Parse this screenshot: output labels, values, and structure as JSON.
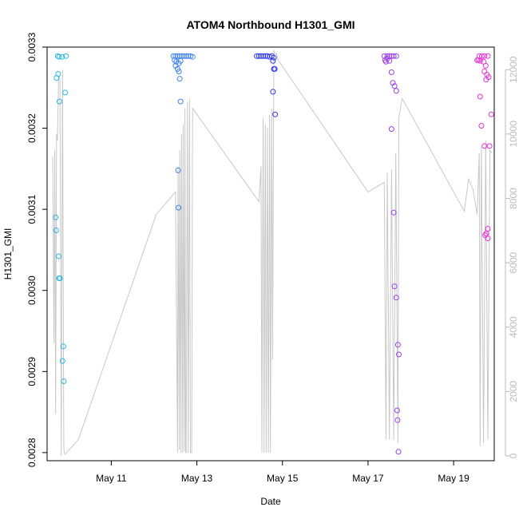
{
  "chart_data": {
    "type": "scatter",
    "title": "ATOM4 Northbound H1301_GMI",
    "xlabel": "Date",
    "ylabel": "H1301_GMI",
    "grid": false,
    "x_ticks": [
      {
        "value": 11,
        "label": "May 11"
      },
      {
        "value": 13,
        "label": "May 13"
      },
      {
        "value": 15,
        "label": "May 15"
      },
      {
        "value": 17,
        "label": "May 17"
      },
      {
        "value": 19,
        "label": "May 19"
      }
    ],
    "xlim": [
      9.5,
      19.95
    ],
    "ylim": [
      0.00279,
      0.0033
    ],
    "y_ticks": [
      {
        "value": 0.0028,
        "label": "0.0028"
      },
      {
        "value": 0.0029,
        "label": "0.0029"
      },
      {
        "value": 0.003,
        "label": "0.0030"
      },
      {
        "value": 0.0031,
        "label": "0.0031"
      },
      {
        "value": 0.0032,
        "label": "0.0032"
      },
      {
        "value": 0.0033,
        "label": "0.0033"
      }
    ],
    "y2lim": [
      -150,
      12700
    ],
    "y2_ticks": [
      {
        "value": 0,
        "label": "0"
      },
      {
        "value": 2000,
        "label": "2000"
      },
      {
        "value": 4000,
        "label": "4000"
      },
      {
        "value": 6000,
        "label": "6000"
      },
      {
        "value": 8000,
        "label": "8000"
      },
      {
        "value": 10000,
        "label": "10000"
      },
      {
        "value": 12000,
        "label": "12000"
      }
    ],
    "colors": {
      "altitude_line": "#c8c8c8",
      "secondary_axis": "#bbbbbb"
    },
    "series": [
      {
        "color": "#29b6e8",
        "points": [
          [
            9.75,
            0.003289
          ],
          [
            9.85,
            0.003288
          ],
          [
            9.94,
            0.003289
          ],
          [
            9.78,
            0.003288
          ],
          [
            9.72,
            0.003262
          ],
          [
            9.76,
            0.003267
          ],
          [
            9.92,
            0.003244
          ],
          [
            9.79,
            0.003233
          ],
          [
            9.7,
            0.00309
          ],
          [
            9.71,
            0.003074
          ],
          [
            9.77,
            0.003042
          ],
          [
            9.78,
            0.003015
          ],
          [
            9.8,
            0.003015
          ],
          [
            9.88,
            0.002931
          ],
          [
            9.86,
            0.002913
          ],
          [
            9.89,
            0.002888
          ]
        ]
      },
      {
        "color": "#3f82ee",
        "points": [
          [
            12.45,
            0.003289
          ],
          [
            12.5,
            0.003289
          ],
          [
            12.55,
            0.003289
          ],
          [
            12.6,
            0.003289
          ],
          [
            12.65,
            0.003289
          ],
          [
            12.7,
            0.003289
          ],
          [
            12.75,
            0.003289
          ],
          [
            12.8,
            0.003289
          ],
          [
            12.85,
            0.003289
          ],
          [
            12.9,
            0.003288
          ],
          [
            12.48,
            0.003284
          ],
          [
            12.52,
            0.003282
          ],
          [
            12.58,
            0.00328
          ],
          [
            12.62,
            0.003283
          ],
          [
            12.5,
            0.003277
          ],
          [
            12.55,
            0.003273
          ],
          [
            12.58,
            0.00327
          ],
          [
            12.6,
            0.003261
          ],
          [
            12.62,
            0.003233
          ],
          [
            12.56,
            0.003148
          ],
          [
            12.57,
            0.003102
          ]
        ]
      },
      {
        "color": "#2e35f0",
        "points": [
          [
            14.4,
            0.003289
          ],
          [
            14.45,
            0.003289
          ],
          [
            14.5,
            0.003289
          ],
          [
            14.55,
            0.003289
          ],
          [
            14.6,
            0.003289
          ],
          [
            14.65,
            0.003289
          ],
          [
            14.7,
            0.003288
          ],
          [
            14.75,
            0.003289
          ],
          [
            14.8,
            0.003287
          ],
          [
            14.78,
            0.003283
          ],
          [
            14.82,
            0.003273
          ],
          [
            14.8,
            0.003273
          ],
          [
            14.78,
            0.003245
          ],
          [
            14.83,
            0.003217
          ]
        ]
      },
      {
        "color": "#9a3ee8",
        "points": [
          [
            17.38,
            0.003289
          ],
          [
            17.45,
            0.003289
          ],
          [
            17.5,
            0.003289
          ],
          [
            17.55,
            0.003289
          ],
          [
            17.6,
            0.003289
          ],
          [
            17.66,
            0.003289
          ],
          [
            17.4,
            0.003284
          ],
          [
            17.42,
            0.003282
          ],
          [
            17.45,
            0.003286
          ],
          [
            17.5,
            0.003283
          ],
          [
            17.55,
            0.003269
          ],
          [
            17.58,
            0.003256
          ],
          [
            17.62,
            0.003252
          ],
          [
            17.66,
            0.003246
          ],
          [
            17.55,
            0.003199
          ],
          [
            17.6,
            0.003096
          ],
          [
            17.62,
            0.003005
          ],
          [
            17.66,
            0.002991
          ],
          [
            17.7,
            0.002933
          ],
          [
            17.72,
            0.002921
          ],
          [
            17.68,
            0.002852
          ],
          [
            17.69,
            0.00284
          ],
          [
            17.71,
            0.002801
          ]
        ]
      },
      {
        "color": "#e535d6",
        "points": [
          [
            19.6,
            0.003289
          ],
          [
            19.66,
            0.003289
          ],
          [
            19.72,
            0.003289
          ],
          [
            19.8,
            0.003289
          ],
          [
            19.55,
            0.003284
          ],
          [
            19.58,
            0.003284
          ],
          [
            19.62,
            0.003283
          ],
          [
            19.7,
            0.003282
          ],
          [
            19.75,
            0.003277
          ],
          [
            19.72,
            0.00327
          ],
          [
            19.78,
            0.003266
          ],
          [
            19.82,
            0.003263
          ],
          [
            19.76,
            0.00326
          ],
          [
            19.62,
            0.003239
          ],
          [
            19.88,
            0.003217
          ],
          [
            19.65,
            0.003203
          ],
          [
            19.72,
            0.003178
          ],
          [
            19.84,
            0.003178
          ],
          [
            19.8,
            0.003076
          ],
          [
            19.8,
            0.003064
          ],
          [
            19.76,
            0.00307
          ],
          [
            19.74,
            0.003068
          ]
        ]
      }
    ],
    "secondary_series": {
      "name": "",
      "color": "#c8c8c8",
      "x": [
        9.63,
        9.66,
        9.68,
        9.7,
        9.72,
        9.74,
        9.77,
        9.8,
        9.83,
        9.86,
        9.89,
        9.9,
        9.92,
        10.23,
        12.05,
        12.5,
        12.55,
        12.56,
        12.59,
        12.6,
        12.63,
        12.64,
        12.67,
        12.68,
        12.71,
        12.72,
        12.74,
        12.75,
        12.78,
        12.8,
        12.83,
        12.85,
        12.88,
        12.9,
        14.45,
        14.5,
        14.52,
        14.55,
        14.57,
        14.6,
        14.62,
        14.65,
        14.67,
        14.7,
        14.72,
        14.75,
        14.77,
        14.8,
        14.82,
        14.84,
        14.86,
        14.88,
        14.9,
        17.0,
        17.38,
        17.42,
        17.45,
        17.5,
        17.55,
        17.6,
        17.65,
        17.7,
        17.72,
        17.76,
        17.78,
        17.8,
        19.25,
        19.35,
        19.45,
        19.55,
        19.6,
        19.62,
        19.65,
        19.7,
        19.75,
        19.8,
        19.85,
        19.9
      ],
      "y": [
        9300,
        3500,
        9500,
        1300,
        10000,
        9800,
        11800,
        11700,
        0,
        12000,
        300,
        100,
        50,
        500,
        7500,
        8200,
        100,
        9000,
        200,
        9500,
        100,
        10000,
        100,
        10300,
        150,
        10800,
        100,
        100,
        11000,
        100,
        11100,
        100,
        100,
        10800,
        7900,
        9000,
        100,
        10500,
        100,
        10300,
        100,
        10200,
        100,
        10600,
        100,
        10800,
        3000,
        12600,
        12500,
        12500,
        12500,
        12400,
        12300,
        8200,
        8500,
        500,
        8800,
        500,
        8900,
        500,
        9400,
        400,
        10500,
        10800,
        11000,
        11100,
        7600,
        8600,
        8300,
        7500,
        9400,
        300,
        9600,
        400,
        9800,
        500,
        9500,
        9400
      ]
    }
  }
}
